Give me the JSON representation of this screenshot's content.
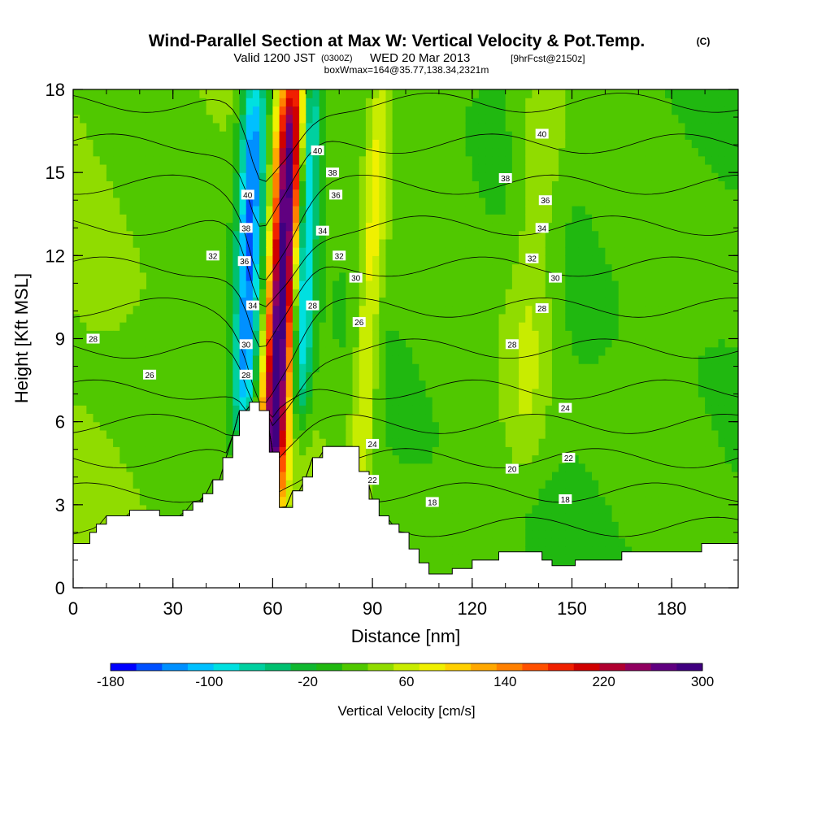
{
  "header": {
    "title": "Wind-Parallel Section at Max W: Vertical Velocity & Pot.Temp.",
    "copyright": "(C)",
    "valid_prefix": "Valid 1200 JST",
    "valid_utc": "(0300Z)",
    "valid_date": "WED 20 Mar 2013",
    "forecast": "[9hrFcst@2150z]",
    "box": "boxWmax=164@35.77,138.34,2321m"
  },
  "chart_data": {
    "type": "heatmap",
    "subtype": "vertical cross-section with potential-temperature contours",
    "xlabel": "Distance [nm]",
    "ylabel": "Height [Kft MSL]",
    "xlim": [
      0,
      200
    ],
    "ylim": [
      0,
      18
    ],
    "x_ticks": [
      "0",
      "30",
      "60",
      "90",
      "120",
      "150",
      "180"
    ],
    "y_ticks": [
      "0",
      "3",
      "6",
      "9",
      "12",
      "15",
      "18"
    ],
    "colorbar": {
      "label": "Vertical Velocity [cm/s]",
      "range": [
        -180,
        300
      ],
      "step": 20,
      "tick_labels": [
        "-180",
        "-100",
        "-20",
        "60",
        "140",
        "220",
        "300"
      ],
      "colors": [
        "#0000ff",
        "#0050ff",
        "#0090ff",
        "#00c0ff",
        "#00e0e0",
        "#00d0a0",
        "#00c070",
        "#10b830",
        "#20b810",
        "#50c800",
        "#90dc00",
        "#c8ec00",
        "#f0f000",
        "#ffd000",
        "#ffa800",
        "#ff8000",
        "#ff5000",
        "#f02000",
        "#d00000",
        "#b00030",
        "#900060",
        "#600080",
        "#400080"
      ]
    },
    "vertical_velocity_features": [
      {
        "x_range": [
          48,
          56
        ],
        "z_range": [
          6.5,
          18
        ],
        "w": -160
      },
      {
        "x_range": [
          58,
          66
        ],
        "z_range": [
          3,
          18
        ],
        "w": 260
      },
      {
        "x_range": [
          66,
          72
        ],
        "z_range": [
          7,
          18
        ],
        "w": -120
      },
      {
        "x_range": [
          85,
          92
        ],
        "z_range": [
          4,
          18
        ],
        "w": 60
      },
      {
        "x_range": [
          130,
          145
        ],
        "z_range": [
          5,
          18
        ],
        "w": 40
      }
    ],
    "contours": {
      "variable": "potential temperature",
      "labels": [
        {
          "text": "40",
          "x": 73.5,
          "z": 15.8
        },
        {
          "text": "38",
          "x": 78,
          "z": 15
        },
        {
          "text": "36",
          "x": 79,
          "z": 14.2
        },
        {
          "text": "34",
          "x": 75,
          "z": 12.9
        },
        {
          "text": "32",
          "x": 80,
          "z": 12
        },
        {
          "text": "30",
          "x": 85,
          "z": 11.2
        },
        {
          "text": "28",
          "x": 72,
          "z": 10.2
        },
        {
          "text": "26",
          "x": 86,
          "z": 9.6
        },
        {
          "text": "40",
          "x": 52.5,
          "z": 14.2
        },
        {
          "text": "38",
          "x": 52,
          "z": 13
        },
        {
          "text": "36",
          "x": 51.5,
          "z": 11.8
        },
        {
          "text": "34",
          "x": 54,
          "z": 10.2
        },
        {
          "text": "30",
          "x": 52,
          "z": 8.8
        },
        {
          "text": "28",
          "x": 52,
          "z": 7.7
        },
        {
          "text": "32",
          "x": 42,
          "z": 12
        },
        {
          "text": "28",
          "x": 6,
          "z": 9
        },
        {
          "text": "26",
          "x": 23,
          "z": 7.7
        },
        {
          "text": "40",
          "x": 141,
          "z": 16.4
        },
        {
          "text": "38",
          "x": 130,
          "z": 14.8
        },
        {
          "text": "36",
          "x": 142,
          "z": 14
        },
        {
          "text": "34",
          "x": 141,
          "z": 13
        },
        {
          "text": "32",
          "x": 138,
          "z": 11.9
        },
        {
          "text": "30",
          "x": 145,
          "z": 11.2
        },
        {
          "text": "28",
          "x": 141,
          "z": 10.1
        },
        {
          "text": "28",
          "x": 132,
          "z": 8.8
        },
        {
          "text": "24",
          "x": 148,
          "z": 6.5
        },
        {
          "text": "24",
          "x": 90,
          "z": 5.2
        },
        {
          "text": "22",
          "x": 149,
          "z": 4.7
        },
        {
          "text": "22",
          "x": 90,
          "z": 3.9
        },
        {
          "text": "20",
          "x": 132,
          "z": 4.3
        },
        {
          "text": "18",
          "x": 108,
          "z": 3.1
        },
        {
          "text": "18",
          "x": 148,
          "z": 3.2
        }
      ]
    },
    "terrain": [
      [
        0,
        1.6
      ],
      [
        5,
        1.6
      ],
      [
        5,
        2.0
      ],
      [
        7,
        2.0
      ],
      [
        7,
        2.3
      ],
      [
        10,
        2.3
      ],
      [
        10,
        2.6
      ],
      [
        17,
        2.6
      ],
      [
        17,
        2.8
      ],
      [
        26,
        2.8
      ],
      [
        26,
        2.6
      ],
      [
        33,
        2.6
      ],
      [
        33,
        2.8
      ],
      [
        36,
        2.8
      ],
      [
        36,
        3.1
      ],
      [
        39,
        3.1
      ],
      [
        39,
        3.4
      ],
      [
        42,
        3.4
      ],
      [
        42,
        3.9
      ],
      [
        45,
        3.9
      ],
      [
        45,
        4.7
      ],
      [
        48,
        4.7
      ],
      [
        48,
        5.5
      ],
      [
        50,
        5.5
      ],
      [
        50,
        6.4
      ],
      [
        53,
        6.4
      ],
      [
        53,
        6.7
      ],
      [
        56,
        6.7
      ],
      [
        56,
        6.4
      ],
      [
        59,
        6.4
      ],
      [
        59,
        4.9
      ],
      [
        62,
        4.9
      ],
      [
        62,
        2.9
      ],
      [
        66,
        2.9
      ],
      [
        66,
        3.5
      ],
      [
        69,
        3.5
      ],
      [
        69,
        4.0
      ],
      [
        72,
        4.0
      ],
      [
        72,
        4.7
      ],
      [
        75,
        4.7
      ],
      [
        75,
        5.1
      ],
      [
        86,
        5.1
      ],
      [
        86,
        4.2
      ],
      [
        89,
        4.2
      ],
      [
        89,
        3.2
      ],
      [
        92,
        3.2
      ],
      [
        92,
        2.6
      ],
      [
        95,
        2.6
      ],
      [
        95,
        2.3
      ],
      [
        98,
        2.3
      ],
      [
        98,
        2.0
      ],
      [
        101,
        2.0
      ],
      [
        101,
        1.4
      ],
      [
        104,
        1.4
      ],
      [
        104,
        0.9
      ],
      [
        107,
        0.9
      ],
      [
        107,
        0.5
      ],
      [
        114,
        0.5
      ],
      [
        114,
        0.7
      ],
      [
        120,
        0.7
      ],
      [
        120,
        1.0
      ],
      [
        128,
        1.0
      ],
      [
        128,
        1.3
      ],
      [
        141,
        1.3
      ],
      [
        141,
        1.0
      ],
      [
        144,
        1.0
      ],
      [
        144,
        0.8
      ],
      [
        151,
        0.8
      ],
      [
        151,
        1.0
      ],
      [
        165,
        1.0
      ],
      [
        165,
        1.3
      ],
      [
        189,
        1.3
      ],
      [
        189,
        1.6
      ],
      [
        200,
        1.6
      ]
    ]
  }
}
